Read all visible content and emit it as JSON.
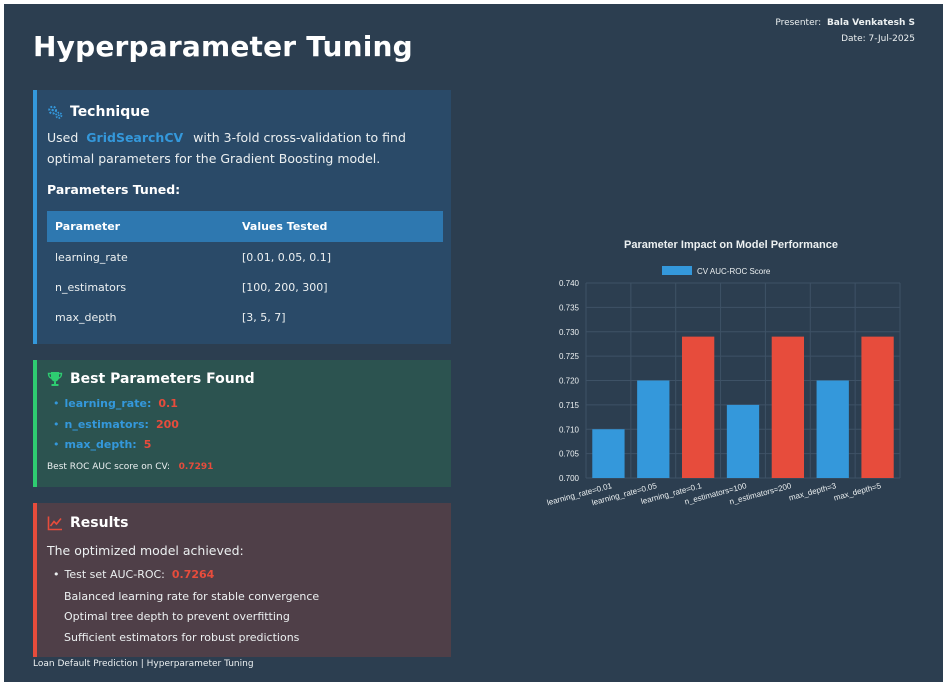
{
  "presenter": {
    "label": "Presenter:",
    "name": "Bala Venkatesh S",
    "date": "Date: 7-Jul-2025"
  },
  "title": "Hyperparameter Tuning",
  "technique": {
    "heading": "Technique",
    "text_before": "Used",
    "method": "GridSearchCV",
    "text_after": "with 3-fold cross-validation to find optimal parameters for the Gradient Boosting model.",
    "params_heading": "Parameters Tuned:",
    "table": {
      "headers": [
        "Parameter",
        "Values Tested"
      ],
      "rows": [
        [
          "learning_rate",
          "[0.01, 0.05, 0.1]"
        ],
        [
          "n_estimators",
          "[100, 200, 300]"
        ],
        [
          "max_depth",
          "[3, 5, 7]"
        ]
      ]
    }
  },
  "best": {
    "heading": "Best Parameters Found",
    "items": [
      {
        "key": "learning_rate:",
        "value": "0.1"
      },
      {
        "key": "n_estimators:",
        "value": "200"
      },
      {
        "key": "max_depth:",
        "value": "5"
      }
    ],
    "score_label": "Best ROC AUC score on CV:",
    "score_value": "0.7291"
  },
  "results": {
    "heading": "Results",
    "intro": "The optimized model achieved:",
    "test_label": "Test set AUC-ROC:",
    "test_value": "0.7264",
    "lines": [
      "Balanced learning rate for stable convergence",
      "Optimal tree depth to prevent overfitting",
      "Sufficient estimators for robust predictions"
    ]
  },
  "footer": "Loan Default Prediction | Hyperparameter Tuning",
  "colors": {
    "accent_blue": "#3498db",
    "accent_red": "#e74c3c",
    "accent_green": "#2ecc71",
    "background": "#2c3e50"
  },
  "icons": {
    "technique": "cogs-icon",
    "best": "trophy-icon",
    "results": "line-chart-icon"
  },
  "chart_data": {
    "type": "bar",
    "title": "Parameter Impact on Model Performance",
    "categories": [
      "learning_rate=0.01",
      "learning_rate=0.05",
      "learning_rate=0.1",
      "n_estimators=100",
      "n_estimators=200",
      "max_depth=3",
      "max_depth=5"
    ],
    "series": [
      {
        "name": "CV AUC-ROC Score",
        "values": [
          0.71,
          0.72,
          0.729,
          0.715,
          0.729,
          0.72,
          0.729
        ]
      }
    ],
    "highlighted": [
      false,
      false,
      true,
      false,
      true,
      false,
      true
    ],
    "bar_colors": {
      "normal": "#3498db",
      "best": "#e74c3c"
    },
    "ylim": [
      0.7,
      0.74
    ],
    "yticks": [
      "0.700",
      "0.705",
      "0.710",
      "0.715",
      "0.720",
      "0.725",
      "0.730",
      "0.735",
      "0.740"
    ],
    "grid": true,
    "legend_position": "top"
  }
}
